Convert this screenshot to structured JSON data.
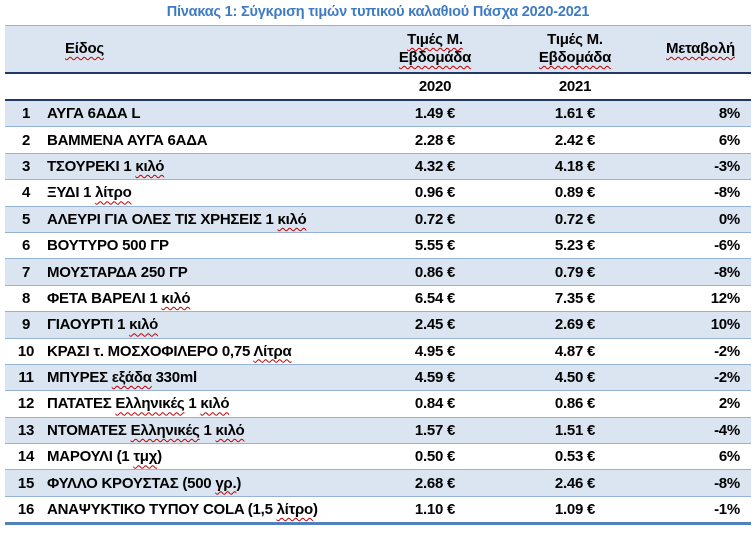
{
  "title": "Πίνακας 1: Σύγκριση τιμών τυπικού καλαθιού Πάσχα 2020-2021",
  "table": {
    "headers": {
      "item": "Είδος",
      "price_2020_line1": "Τιμές Μ.",
      "price_2020_line2": "Εβδομάδα",
      "price_2021_line1": "Τιμές Μ.",
      "price_2021_line2": "Εβδομάδα",
      "change": "Μεταβολή",
      "year_2020": "2020",
      "year_2021": "2021"
    },
    "rows": [
      {
        "num": "1",
        "name": "ΑΥΓΑ 6ΑΔΑ L",
        "price_2020": "1.49 €",
        "price_2021": "1.61 €",
        "change": "8%",
        "misspelled": []
      },
      {
        "num": "2",
        "name": "ΒΑΜΜΕΝΑ ΑΥΓΑ 6ΑΔΑ",
        "price_2020": "2.28 €",
        "price_2021": "2.42 €",
        "change": "6%",
        "misspelled": []
      },
      {
        "num": "3",
        "name": "ΤΣΟΥΡΕΚΙ 1 κιλό",
        "price_2020": "4.32 €",
        "price_2021": "4.18 €",
        "change": "-3%",
        "misspelled": [
          "κιλό"
        ]
      },
      {
        "num": "4",
        "name": "ΞΥΔΙ 1 λίτρο",
        "price_2020": "0.96 €",
        "price_2021": "0.89 €",
        "change": "-8%",
        "misspelled": [
          "λίτρο"
        ]
      },
      {
        "num": "5",
        "name": "ΑΛΕΥΡΙ ΓΙΑ ΟΛΕΣ ΤΙΣ ΧΡΗΣΕΙΣ 1 κιλό",
        "price_2020": "0.72 €",
        "price_2021": "0.72 €",
        "change": "0%",
        "misspelled": [
          "κιλό"
        ]
      },
      {
        "num": "6",
        "name": "ΒΟΥΤΥΡΟ 500 ΓΡ",
        "price_2020": "5.55 €",
        "price_2021": "5.23 €",
        "change": "-6%",
        "misspelled": []
      },
      {
        "num": "7",
        "name": "ΜΟΥΣΤΑΡΔΑ 250 ΓΡ",
        "price_2020": "0.86 €",
        "price_2021": "0.79 €",
        "change": "-8%",
        "misspelled": []
      },
      {
        "num": "8",
        "name": "ΦΕΤΑ ΒΑΡΕΛΙ 1 κιλό",
        "price_2020": "6.54 €",
        "price_2021": "7.35 €",
        "change": "12%",
        "misspelled": [
          "κιλό"
        ]
      },
      {
        "num": "9",
        "name": "ΓΙΑΟΥΡΤΙ 1 κιλό",
        "price_2020": "2.45 €",
        "price_2021": "2.69 €",
        "change": "10%",
        "misspelled": [
          "κιλό"
        ]
      },
      {
        "num": "10",
        "name": "ΚΡΑΣΙ τ. ΜΟΣΧΟΦΙΛΕΡΟ 0,75 Λίτρα",
        "price_2020": "4.95 €",
        "price_2021": "4.87 €",
        "change": "-2%",
        "misspelled": [
          "Λίτρα"
        ]
      },
      {
        "num": "11",
        "name": "ΜΠΥΡΕΣ εξάδα 330ml",
        "price_2020": "4.59 €",
        "price_2021": "4.50 €",
        "change": "-2%",
        "misspelled": [
          "εξάδα"
        ]
      },
      {
        "num": "12",
        "name": "ΠΑΤΑΤΕΣ Ελληνικές 1 κιλό",
        "price_2020": "0.84 €",
        "price_2021": "0.86 €",
        "change": "2%",
        "misspelled": [
          "Ελληνικές",
          "κιλό"
        ]
      },
      {
        "num": "13",
        "name": "ΝΤΟΜΑΤΕΣ Ελληνικές 1 κιλό",
        "price_2020": "1.57 €",
        "price_2021": "1.51 €",
        "change": "-4%",
        "misspelled": [
          "Ελληνικές",
          "κιλό"
        ]
      },
      {
        "num": "14",
        "name": "ΜΑΡΟΥΛΙ (1 τμχ)",
        "price_2020": "0.50 €",
        "price_2021": "0.53 €",
        "change": "6%",
        "misspelled": [
          "τμχ"
        ]
      },
      {
        "num": "15",
        "name": "ΦΥΛΛΟ ΚΡΟΥΣΤΑΣ (500 γρ.)",
        "price_2020": "2.68 €",
        "price_2021": "2.46 €",
        "change": "-8%",
        "misspelled": [
          "γρ."
        ]
      },
      {
        "num": "16",
        "name": "ΑΝΑΨΥΚΤΙΚΟ ΤΥΠΟΥ COLA (1,5 λίτρο)",
        "price_2020": "1.10 €",
        "price_2021": "1.09 €",
        "change": "-1%",
        "misspelled": [
          "λίτρο"
        ]
      }
    ]
  },
  "colors": {
    "title_text": "#3E7BC4",
    "header_band_bg": "#DBE5F1",
    "banded_row_bg": "#DBE5F1",
    "row_separator": "#95B3D7",
    "header_rule": "#1F3864",
    "bottom_rule": "#4F81BD",
    "spellcheck_squiggle": "#C00000"
  }
}
